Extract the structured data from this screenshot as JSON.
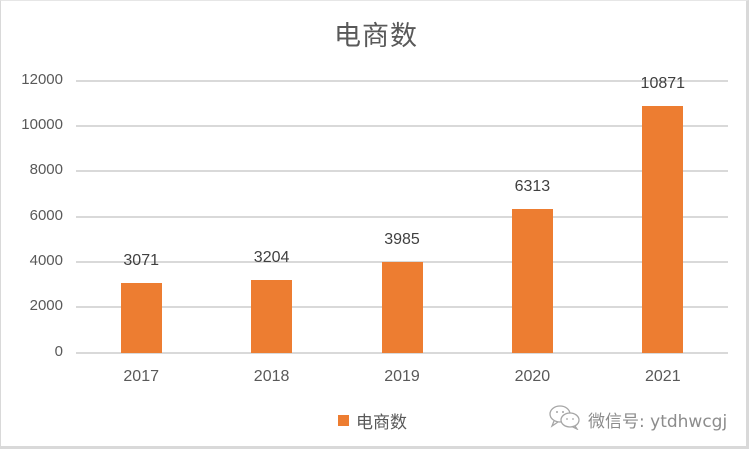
{
  "chart_data": {
    "type": "bar",
    "title": "电商数",
    "categories": [
      "2017",
      "2018",
      "2019",
      "2020",
      "2021"
    ],
    "series": [
      {
        "name": "电商数",
        "color": "#ed7d31",
        "values": [
          3071,
          3204,
          3985,
          6313,
          10871
        ]
      }
    ],
    "data_labels": [
      "3071",
      "3204",
      "3985",
      "6313",
      "10871"
    ],
    "xlabel": "",
    "ylabel": "",
    "ylim": [
      0,
      12000
    ],
    "yticks": [
      "0",
      "2000",
      "4000",
      "6000",
      "8000",
      "10000",
      "12000"
    ],
    "grid": true,
    "legend_position": "bottom"
  },
  "legend": {
    "label": "电商数"
  },
  "watermark": {
    "text": "微信号: ytdhwcgj",
    "icon": "wechat-icon"
  }
}
